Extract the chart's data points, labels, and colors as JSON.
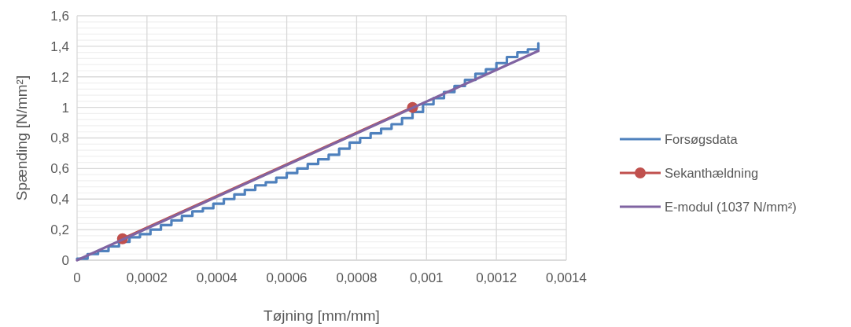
{
  "chart_data": {
    "type": "line",
    "xlabel": "Tøjning [mm/mm]",
    "ylabel": "Spænding [N/mm²]",
    "xlim": [
      0,
      0.0014
    ],
    "ylim": [
      0,
      1.6
    ],
    "xticks": [
      0,
      {
        "value": 0.0002,
        "label": "0,0002"
      },
      {
        "value": 0.0004,
        "label": "0,0004"
      },
      {
        "value": 0.0006,
        "label": "0,0006"
      },
      {
        "value": 0.0008,
        "label": "0,0008"
      },
      {
        "value": 0.001,
        "label": "0,001"
      },
      {
        "value": 0.0012,
        "label": "0,0012"
      },
      {
        "value": 0.0014,
        "label": "0,0014"
      }
    ],
    "yticks": [
      0,
      {
        "value": 0.2,
        "label": "0,2"
      },
      {
        "value": 0.4,
        "label": "0,4"
      },
      {
        "value": 0.6,
        "label": "0,6"
      },
      {
        "value": 0.8,
        "label": "0,8"
      },
      1,
      {
        "value": 1.2,
        "label": "1,2"
      },
      {
        "value": 1.4,
        "label": "1,4"
      },
      {
        "value": 1.6,
        "label": "1,6"
      }
    ],
    "grid": true,
    "legend": "right",
    "marker": "none",
    "series": [
      {
        "name": "Forsøgsdata",
        "type": "step",
        "color": "#4f81bd",
        "x": [
          0,
          3e-05,
          6e-05,
          9e-05,
          0.00012,
          0.00015,
          0.00018,
          0.00021,
          0.00024,
          0.00027,
          0.0003,
          0.00033,
          0.00036,
          0.00039,
          0.00042,
          0.00045,
          0.00048,
          0.00051,
          0.00054,
          0.00057,
          0.0006,
          0.00063,
          0.00066,
          0.00069,
          0.00072,
          0.00075,
          0.00078,
          0.00081,
          0.00084,
          0.00087,
          0.0009,
          0.00093,
          0.00096,
          0.00099,
          0.00102,
          0.00105,
          0.00108,
          0.00111,
          0.00114,
          0.00117,
          0.0012,
          0.00123,
          0.00126,
          0.00129,
          0.00132
        ],
        "values": [
          0.01,
          0.04,
          0.06,
          0.09,
          0.12,
          0.15,
          0.17,
          0.2,
          0.23,
          0.26,
          0.29,
          0.32,
          0.34,
          0.37,
          0.4,
          0.43,
          0.46,
          0.49,
          0.51,
          0.54,
          0.57,
          0.6,
          0.63,
          0.66,
          0.69,
          0.73,
          0.77,
          0.8,
          0.83,
          0.86,
          0.89,
          0.93,
          0.97,
          1.02,
          1.06,
          1.1,
          1.14,
          1.18,
          1.22,
          1.25,
          1.29,
          1.33,
          1.36,
          1.38,
          1.42
        ]
      },
      {
        "name": "Sekanthældning",
        "marker": "circle",
        "color": "#c0504d",
        "x": [
          0.00013,
          0.00096
        ],
        "values": [
          0.14,
          1.0
        ]
      },
      {
        "name": "E-modul (1037 N/mm²)",
        "color": "#8064a2",
        "x": [
          0,
          0.00132
        ],
        "values": [
          0,
          1.37
        ]
      }
    ]
  }
}
